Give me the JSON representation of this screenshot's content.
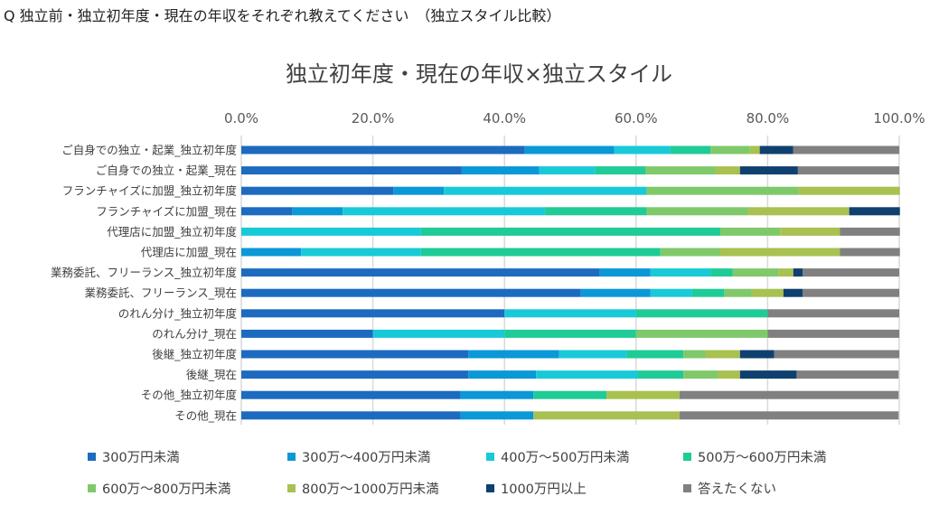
{
  "question": "Q 独立前・独立初年度・現在の年収をそれぞれ教えてください　（独立スタイル比較）",
  "chart_data": {
    "type": "bar",
    "orientation": "horizontal",
    "stacked": true,
    "title": "独立初年度・現在の年収×独立スタイル",
    "xlim": [
      0,
      100
    ],
    "x_ticks": [
      "0.0%",
      "20.0%",
      "40.0%",
      "60.0%",
      "80.0%",
      "100.0%"
    ],
    "grid": true,
    "legend_position": "bottom",
    "categories": [
      "ご自身での独立・起業_独立初年度",
      "ご自身での独立・起業_現在",
      "フランチャイズに加盟_独立初年度",
      "フランチャイズに加盟_現在",
      "代理店に加盟_独立初年度",
      "代理店に加盟_現在",
      "業務委託、フリーランス_独立初年度",
      "業務委託、フリーランス_現在",
      "のれん分け_独立初年度",
      "のれん分け_現在",
      "後継_独立初年度",
      "後継_現在",
      "その他_独立初年度",
      "その他_現在"
    ],
    "series": [
      {
        "name": "300万円未満",
        "color": "#1C6BC0",
        "values": [
          43.1,
          33.5,
          23.1,
          7.7,
          0,
          0,
          54.5,
          51.6,
          40,
          20,
          34.5,
          34.5,
          33.3,
          33.3
        ]
      },
      {
        "name": "300万～400万円未満",
        "color": "#0B98D6",
        "values": [
          13.6,
          11.8,
          7.7,
          7.7,
          0,
          9.1,
          7.7,
          10.6,
          0,
          0,
          13.8,
          10.3,
          11.1,
          11.1
        ]
      },
      {
        "name": "400万～500万円未満",
        "color": "#18CAD8",
        "values": [
          8.5,
          8.5,
          30.8,
          30.8,
          27.3,
          18.2,
          9.1,
          6.3,
          20,
          20,
          10.3,
          15.5,
          0,
          0
        ]
      },
      {
        "name": "500万～600万円未満",
        "color": "#1FCB96",
        "values": [
          6.1,
          7.6,
          0,
          15.4,
          45.5,
          36.4,
          3.4,
          4.9,
          20,
          20,
          8.6,
          6.9,
          11.1,
          0
        ]
      },
      {
        "name": "600万～800万円未満",
        "color": "#7FC96A",
        "values": [
          6.0,
          10.7,
          23.1,
          15.4,
          9.1,
          9.1,
          7.0,
          4.2,
          0,
          20,
          3.4,
          5.2,
          0,
          0
        ]
      },
      {
        "name": "800万～1000万円未満",
        "color": "#A8C150",
        "values": [
          1.5,
          3.7,
          15.4,
          15.4,
          9.1,
          18.2,
          2.2,
          4.8,
          0,
          0,
          5.2,
          3.4,
          11.1,
          22.2
        ]
      },
      {
        "name": "1000万円以上",
        "color": "#0F406F",
        "values": [
          5.1,
          8.8,
          0,
          7.7,
          0,
          0,
          1.4,
          2.9,
          0,
          0,
          5.2,
          8.6,
          0,
          0
        ]
      },
      {
        "name": "答えたくない",
        "color": "#808080",
        "values": [
          16.1,
          15.4,
          0,
          0,
          9.1,
          9.1,
          14.7,
          14.7,
          20,
          20,
          19.0,
          15.5,
          33.3,
          33.3
        ]
      }
    ]
  }
}
